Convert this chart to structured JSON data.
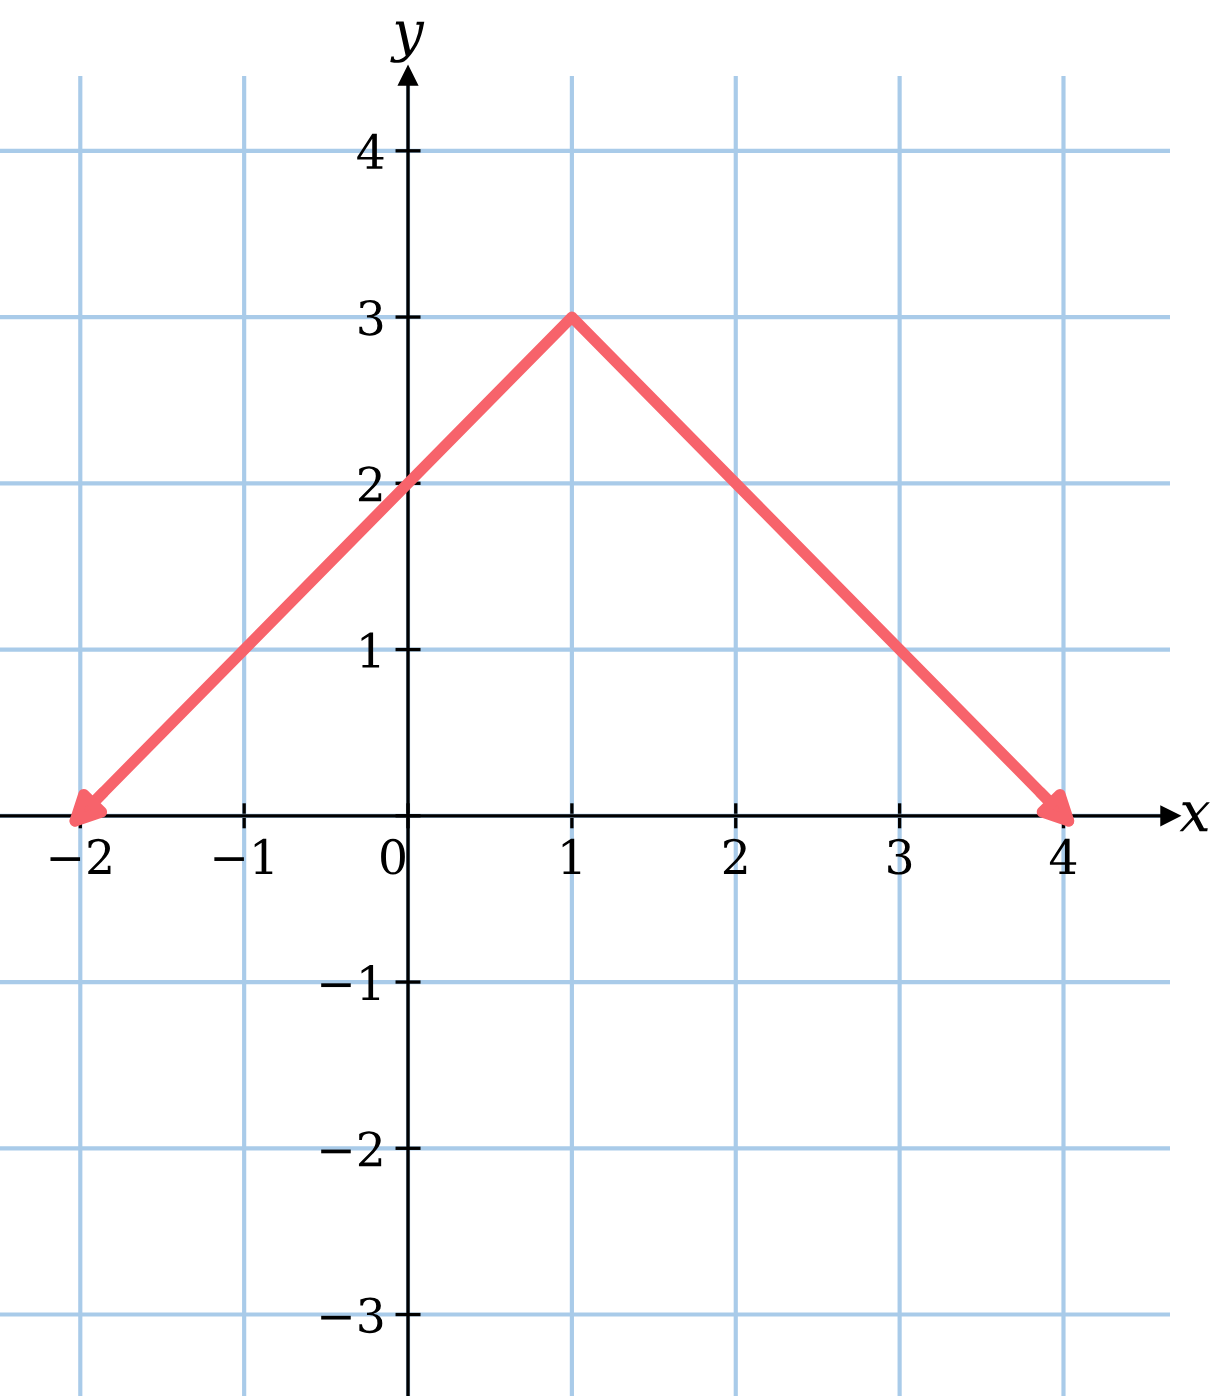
{
  "chart_data": {
    "type": "line",
    "xlabel": "x",
    "ylabel": "y",
    "x": [
      -2,
      1,
      4
    ],
    "series": [
      {
        "color": "#f7636b",
        "values": [
          0,
          3,
          0
        ]
      }
    ],
    "xlim": [
      -2.49,
      4.65
    ],
    "ylim": [
      -3.49,
      4.45
    ],
    "xticks": [
      -2,
      -1,
      {
        "value": 0,
        "label": "0"
      },
      1,
      2,
      3,
      4
    ],
    "yticks": [
      -3,
      -2,
      -1,
      {
        "value": 0,
        "label": null
      },
      1,
      2,
      3,
      4
    ],
    "grid": true,
    "marker": "none",
    "line_style": "solid"
  }
}
